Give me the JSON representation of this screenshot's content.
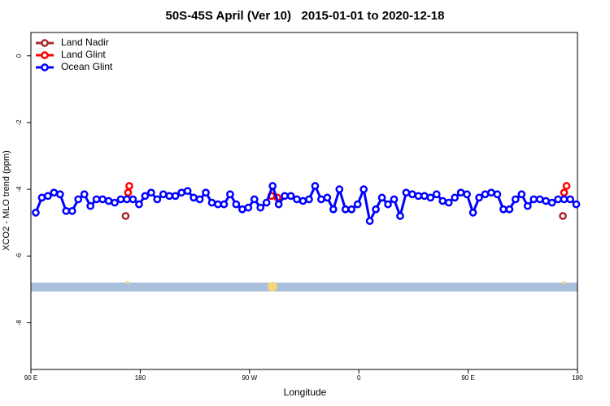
{
  "chart_data": {
    "type": "line",
    "title": "50S-45S April (Ver 10)   2015-01-01 to 2020-12-18",
    "x_label": "Longitude",
    "y_label": "XCO2 - MLO trend (ppm)",
    "xlim": [
      90,
      540
    ],
    "xticks": [
      {
        "value": 90,
        "label": "90 E"
      },
      {
        "value": 180,
        "label": "180"
      },
      {
        "value": 270,
        "label": "90 W"
      },
      {
        "value": 360,
        "label": "0"
      },
      {
        "value": 450,
        "label": "90 E"
      },
      {
        "value": 540,
        "label": "180"
      }
    ],
    "ylim": [
      -9.4,
      0.7
    ],
    "yticks": [
      0,
      -2,
      -4,
      -6,
      -8
    ],
    "legend": "top-left",
    "series": [
      {
        "name": "Land Nadir",
        "color": "#a52a2a",
        "x": [
          168,
          528
        ],
        "values": [
          -4.8,
          -4.8
        ]
      },
      {
        "name": "Land Glint",
        "color": "#ff0000",
        "x": [
          170,
          171,
          288,
          293,
          529,
          531
        ],
        "values": [
          -4.1,
          -3.9,
          -4.2,
          -4.25,
          -4.1,
          -3.9
        ]
      },
      {
        "name": "Ocean Glint",
        "color": "#0000ff",
        "x": [
          94,
          99,
          104,
          109,
          114,
          119,
          124,
          129,
          134,
          139,
          144,
          149,
          154,
          159,
          164,
          169,
          174,
          179,
          184,
          189,
          194,
          199,
          204,
          209,
          214,
          219,
          224,
          229,
          234,
          239,
          244,
          249,
          254,
          259,
          264,
          269,
          274,
          279,
          284,
          289,
          294,
          299,
          304,
          309,
          314,
          319,
          324,
          329,
          334,
          339,
          344,
          349,
          354,
          359,
          364,
          369,
          374,
          379,
          384,
          389,
          394,
          399,
          404,
          409,
          414,
          419,
          424,
          429,
          434,
          439,
          444,
          449,
          454,
          459,
          464,
          469,
          474,
          479,
          484,
          489,
          494,
          499,
          504,
          509,
          514,
          519,
          524,
          529,
          534,
          539
        ],
        "values": [
          -4.7,
          -4.25,
          -4.2,
          -4.1,
          -4.15,
          -4.65,
          -4.65,
          -4.3,
          -4.15,
          -4.5,
          -4.3,
          -4.3,
          -4.35,
          -4.4,
          -4.3,
          -4.3,
          -4.3,
          -4.45,
          -4.2,
          -4.1,
          -4.3,
          -4.15,
          -4.2,
          -4.2,
          -4.1,
          -4.05,
          -4.25,
          -4.3,
          -4.1,
          -4.4,
          -4.45,
          -4.45,
          -4.15,
          -4.45,
          -4.6,
          -4.55,
          -4.3,
          -4.55,
          -4.4,
          -3.9,
          -4.45,
          -4.2,
          -4.2,
          -4.3,
          -4.35,
          -4.3,
          -3.9,
          -4.3,
          -4.25,
          -4.6,
          -4.0,
          -4.6,
          -4.6,
          -4.45,
          -4.0,
          -4.95,
          -4.6,
          -4.25,
          -4.45,
          -4.3,
          -4.8,
          -4.1,
          -4.15,
          -4.2,
          -4.2,
          -4.25,
          -4.15,
          -4.35,
          -4.4,
          -4.25,
          -4.1,
          -4.15,
          -4.7,
          -4.25,
          -4.15,
          -4.1,
          -4.15,
          -4.6,
          -4.6,
          -4.3,
          -4.15,
          -4.5,
          -4.3,
          -4.3,
          -4.35,
          -4.4,
          -4.3,
          -4.3,
          -4.3,
          -4.45
        ]
      }
    ]
  }
}
